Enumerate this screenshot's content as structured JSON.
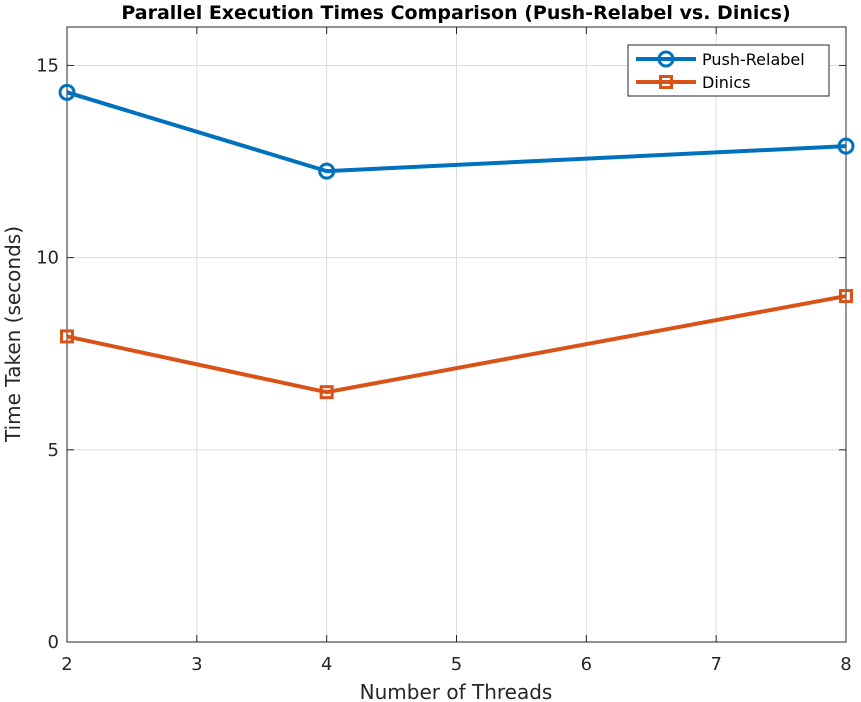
{
  "chart_data": {
    "type": "line",
    "title": "Parallel Execution Times Comparison (Push-Relabel vs. Dinics)",
    "xlabel": "Number of Threads",
    "ylabel": "Time Taken (seconds)",
    "xlim": [
      2,
      8
    ],
    "ylim": [
      0,
      16
    ],
    "xticks": [
      2,
      3,
      4,
      5,
      6,
      7,
      8
    ],
    "yticks": [
      0,
      5,
      10,
      15
    ],
    "grid": true,
    "legend_position": "top-right",
    "series": [
      {
        "name": "Push-Relabel",
        "color": "#0072BD",
        "marker": "circle",
        "x": [
          2,
          4,
          8
        ],
        "y": [
          14.3,
          12.25,
          12.9
        ]
      },
      {
        "name": "Dinics",
        "color": "#D95319",
        "marker": "square",
        "x": [
          2,
          4,
          8
        ],
        "y": [
          7.95,
          6.5,
          9.0
        ]
      }
    ]
  }
}
